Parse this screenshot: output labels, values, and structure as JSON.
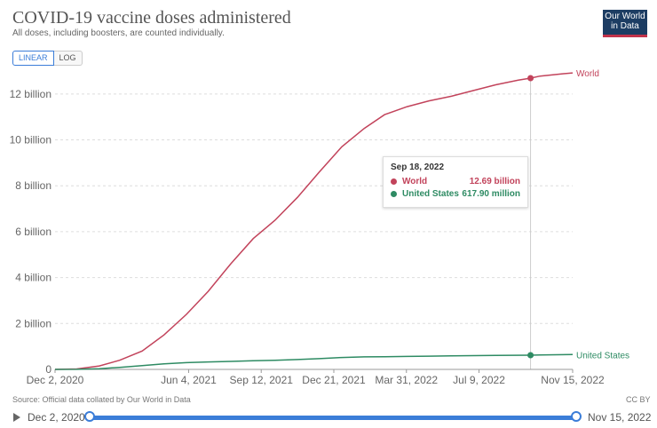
{
  "title": "COVID-19 vaccine doses administered",
  "subtitle": "All doses, including boosters, are counted individually.",
  "logo": {
    "line1": "Our World",
    "line2": "in Data"
  },
  "scale_toggle": {
    "linear": "LINEAR",
    "log": "LOG",
    "selected": "LINEAR"
  },
  "source": "Source: Official data collated by Our World in Data",
  "license": "CC BY",
  "timeline": {
    "start": "Dec 2, 2020",
    "end": "Nov 15, 2022"
  },
  "tooltip": {
    "date": "Sep 18, 2022",
    "rows": [
      {
        "name": "World",
        "value": "12.69 billion",
        "color": "#c2435b"
      },
      {
        "name": "United States",
        "value": "617.90 million",
        "color": "#2e8b63"
      }
    ]
  },
  "chart_data": {
    "type": "line",
    "title": "COVID-19 vaccine doses administered",
    "subtitle": "All doses, including boosters, are counted individually.",
    "xlabel": "",
    "ylabel": "",
    "x_ticks": [
      "Dec 2, 2020",
      "Jun 4, 2021",
      "Sep 12, 2021",
      "Dec 21, 2021",
      "Mar 31, 2022",
      "Jul 9, 2022",
      "Nov 15, 2022"
    ],
    "y_ticks": [
      "0",
      "2 billion",
      "4 billion",
      "6 billion",
      "8 billion",
      "10 billion",
      "12 billion"
    ],
    "ylim": [
      0,
      13000000000
    ],
    "grid": "horizontal dashed",
    "scale": "linear",
    "highlight_date": "2022-09-18",
    "series": [
      {
        "name": "World",
        "color": "#c2435b",
        "points": [
          [
            "2020-12-02",
            0
          ],
          [
            "2021-01-01",
            20000000
          ],
          [
            "2021-02-01",
            150000000
          ],
          [
            "2021-03-01",
            400000000
          ],
          [
            "2021-04-01",
            800000000
          ],
          [
            "2021-05-01",
            1500000000
          ],
          [
            "2021-06-01",
            2400000000
          ],
          [
            "2021-07-01",
            3400000000
          ],
          [
            "2021-08-01",
            4600000000
          ],
          [
            "2021-09-01",
            5700000000
          ],
          [
            "2021-10-01",
            6500000000
          ],
          [
            "2021-11-01",
            7500000000
          ],
          [
            "2021-12-01",
            8600000000
          ],
          [
            "2022-01-01",
            9700000000
          ],
          [
            "2022-02-01",
            10500000000
          ],
          [
            "2022-03-01",
            11100000000
          ],
          [
            "2022-04-01",
            11450000000
          ],
          [
            "2022-05-01",
            11700000000
          ],
          [
            "2022-06-01",
            11900000000
          ],
          [
            "2022-07-01",
            12150000000
          ],
          [
            "2022-08-01",
            12400000000
          ],
          [
            "2022-09-01",
            12600000000
          ],
          [
            "2022-09-18",
            12690000000
          ],
          [
            "2022-10-01",
            12780000000
          ],
          [
            "2022-11-01",
            12880000000
          ],
          [
            "2022-11-15",
            12920000000
          ]
        ]
      },
      {
        "name": "United States",
        "color": "#2e8b63",
        "points": [
          [
            "2020-12-02",
            0
          ],
          [
            "2021-01-01",
            3000000
          ],
          [
            "2021-02-01",
            32000000
          ],
          [
            "2021-03-01",
            90000000
          ],
          [
            "2021-04-01",
            165000000
          ],
          [
            "2021-05-01",
            245000000
          ],
          [
            "2021-06-01",
            295000000
          ],
          [
            "2021-07-01",
            325000000
          ],
          [
            "2021-08-01",
            350000000
          ],
          [
            "2021-09-01",
            375000000
          ],
          [
            "2021-10-01",
            400000000
          ],
          [
            "2021-11-01",
            430000000
          ],
          [
            "2021-12-01",
            470000000
          ],
          [
            "2022-01-01",
            520000000
          ],
          [
            "2022-02-01",
            545000000
          ],
          [
            "2022-03-01",
            555000000
          ],
          [
            "2022-04-01",
            565000000
          ],
          [
            "2022-05-01",
            575000000
          ],
          [
            "2022-06-01",
            590000000
          ],
          [
            "2022-07-01",
            600000000
          ],
          [
            "2022-08-01",
            608000000
          ],
          [
            "2022-09-18",
            617900000
          ],
          [
            "2022-10-01",
            625000000
          ],
          [
            "2022-11-15",
            645000000
          ]
        ]
      }
    ]
  }
}
